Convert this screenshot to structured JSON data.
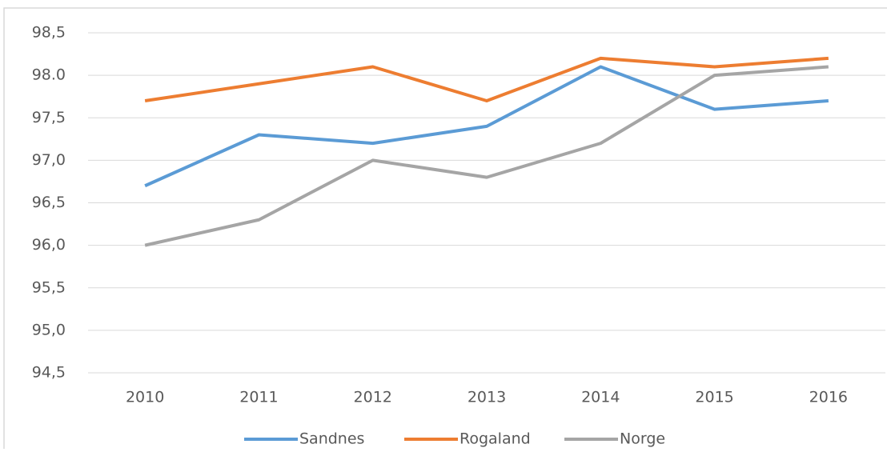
{
  "chart_data": {
    "type": "line",
    "categories": [
      "2010",
      "2011",
      "2012",
      "2013",
      "2014",
      "2015",
      "2016"
    ],
    "series": [
      {
        "name": "Sandnes",
        "color": "#5b9bd5",
        "values": [
          96.7,
          97.3,
          97.2,
          97.4,
          98.1,
          97.6,
          97.7
        ]
      },
      {
        "name": "Rogaland",
        "color": "#ed7d31",
        "values": [
          97.7,
          97.9,
          98.1,
          97.7,
          98.2,
          98.1,
          98.2
        ]
      },
      {
        "name": "Norge",
        "color": "#a5a5a5",
        "values": [
          96.0,
          96.3,
          97.0,
          96.8,
          97.2,
          98.0,
          98.1
        ]
      }
    ],
    "ylim": [
      94.5,
      98.5
    ],
    "yticks": [
      {
        "value": 94.5,
        "label": "94,5"
      },
      {
        "value": 95,
        "label": "95,0"
      },
      {
        "value": 95.5,
        "label": "95,5"
      },
      {
        "value": 96,
        "label": "96,0"
      },
      {
        "value": 96.5,
        "label": "96,5"
      },
      {
        "value": 97,
        "label": "97,0"
      },
      {
        "value": 97.5,
        "label": "97,5"
      },
      {
        "value": 98,
        "label": "98.0"
      },
      {
        "value": 98.5,
        "label": "98,5"
      }
    ],
    "grid": true,
    "legend": "bottom"
  }
}
